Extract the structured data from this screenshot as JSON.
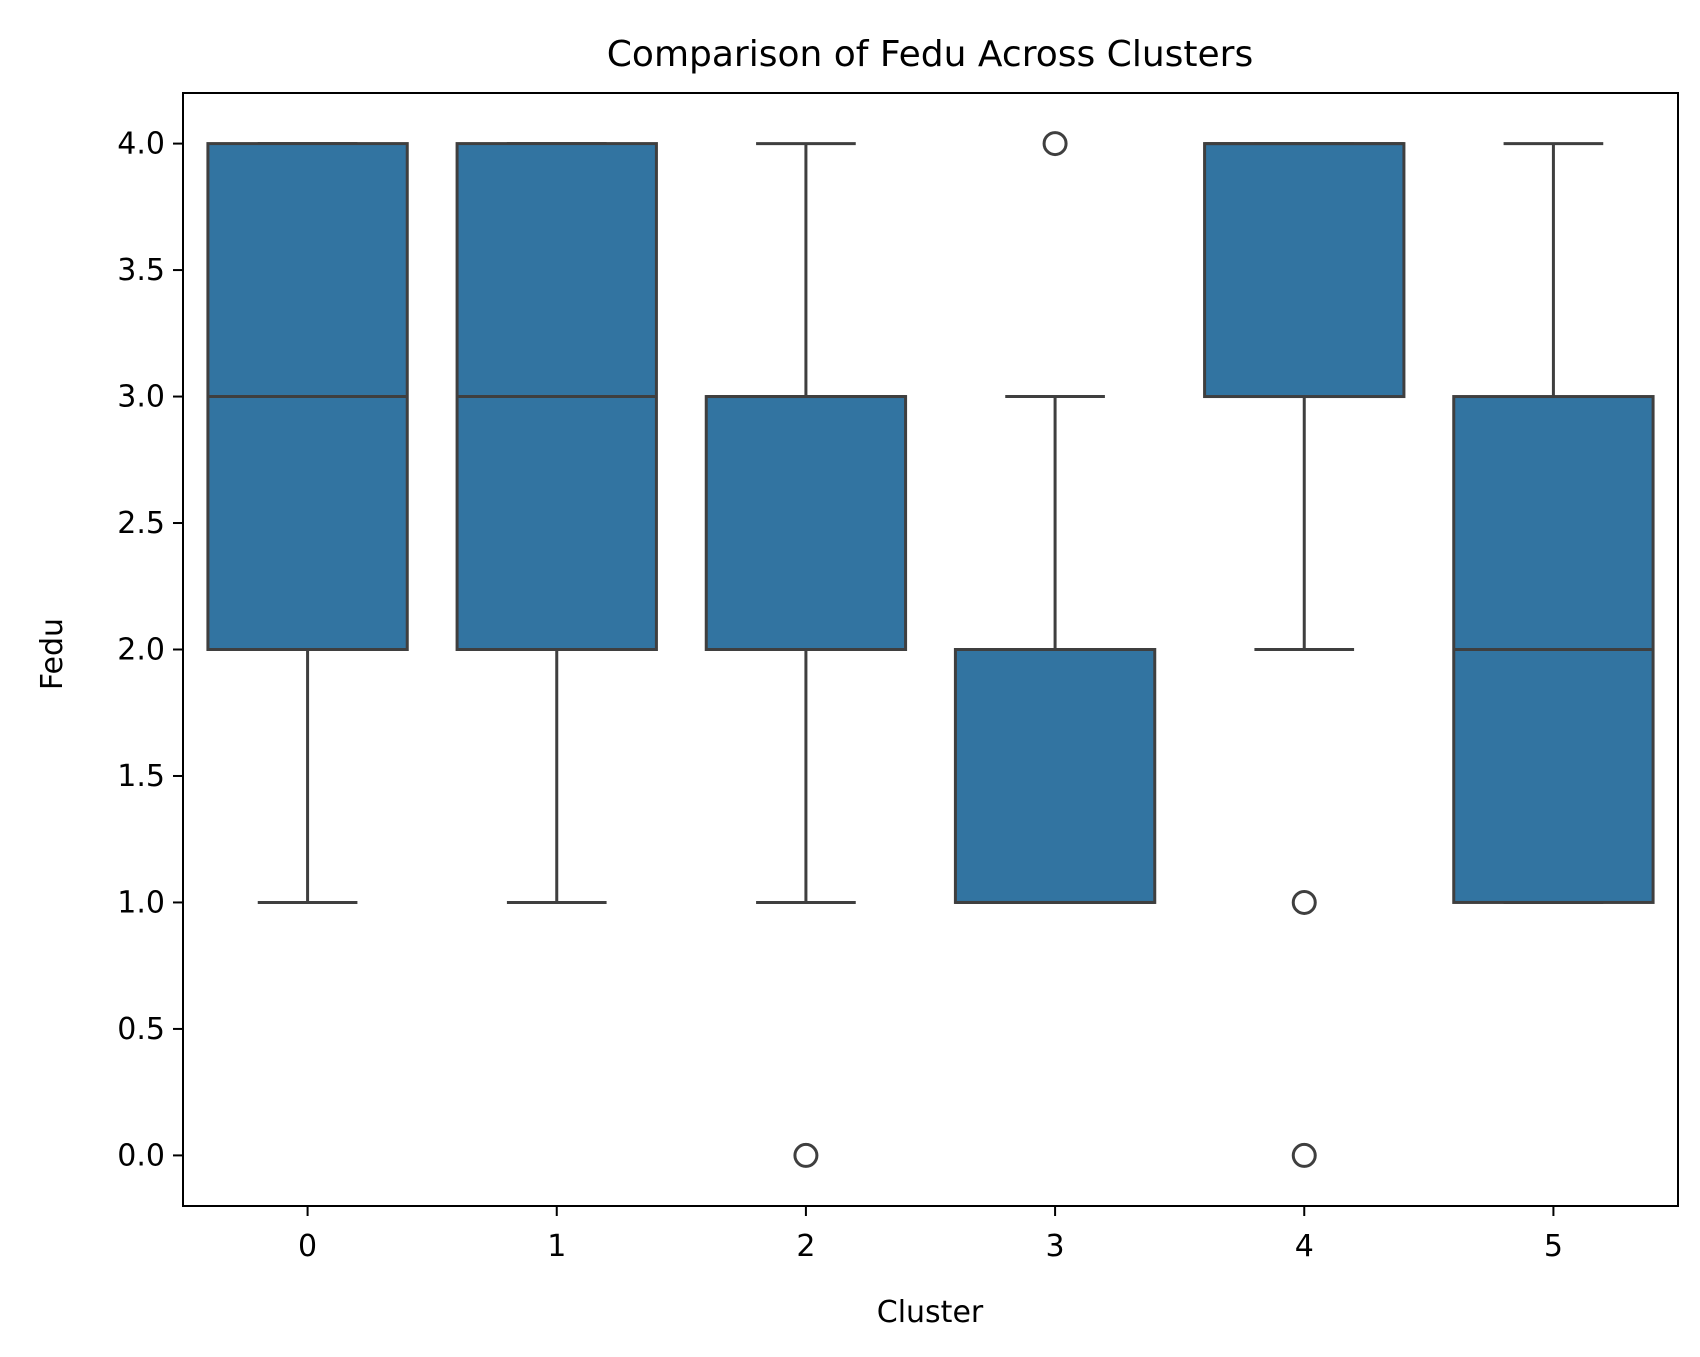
{
  "chart_data": {
    "type": "box",
    "title": "Comparison of Fedu Across Clusters",
    "xlabel": "Cluster",
    "ylabel": "Fedu",
    "categories": [
      "0",
      "1",
      "2",
      "3",
      "4",
      "5"
    ],
    "ylim": [
      -0.2,
      4.2
    ],
    "yticks": [
      "0.0",
      "0.5",
      "1.0",
      "1.5",
      "2.0",
      "2.5",
      "3.0",
      "3.5",
      "4.0"
    ],
    "grid": false,
    "box_color": "#3274a1",
    "line_color": "#3f3f3f",
    "boxes": [
      {
        "category": "0",
        "whisker_low": 1,
        "q1": 2,
        "median": 3,
        "q3": 4,
        "whisker_high": 4,
        "outliers": []
      },
      {
        "category": "1",
        "whisker_low": 1,
        "q1": 2,
        "median": 3,
        "q3": 4,
        "whisker_high": 4,
        "outliers": []
      },
      {
        "category": "2",
        "whisker_low": 1,
        "q1": 2,
        "median": 3,
        "q3": 3,
        "whisker_high": 4,
        "outliers": [
          0
        ]
      },
      {
        "category": "3",
        "whisker_low": 1,
        "q1": 1,
        "median": 1,
        "q3": 2,
        "whisker_high": 3,
        "outliers": [
          4
        ]
      },
      {
        "category": "4",
        "whisker_low": 2,
        "q1": 3,
        "median": 4,
        "q3": 4,
        "whisker_high": 4,
        "outliers": [
          1,
          0
        ]
      },
      {
        "category": "5",
        "whisker_low": 1,
        "q1": 1,
        "median": 2,
        "q3": 3,
        "whisker_high": 4,
        "outliers": []
      }
    ]
  }
}
